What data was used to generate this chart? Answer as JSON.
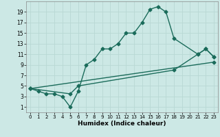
{
  "line1_x": [
    0,
    1,
    2,
    3,
    4,
    5,
    6,
    7,
    8,
    9,
    10,
    11,
    12,
    13,
    14,
    15,
    16,
    17,
    18,
    21,
    22,
    23
  ],
  "line1_y": [
    4.5,
    4,
    3.5,
    3.5,
    3,
    1,
    4,
    9,
    10,
    12,
    12,
    13,
    15,
    15,
    17,
    19.5,
    20,
    19,
    14,
    11,
    12,
    10.5
  ],
  "line2_x": [
    0,
    23
  ],
  "line2_y": [
    4.5,
    9.5
  ],
  "line3_x": [
    0,
    5,
    6,
    18,
    21,
    22,
    23
  ],
  "line3_y": [
    4.5,
    3.5,
    5,
    8,
    11,
    12,
    10.5
  ],
  "color": "#1a6b5a",
  "bg_color": "#cce8e5",
  "grid_color": "#b8d8d4",
  "xlabel": "Humidex (Indice chaleur)",
  "xlim": [
    -0.5,
    23.5
  ],
  "ylim": [
    0,
    21
  ],
  "xticks": [
    0,
    1,
    2,
    3,
    4,
    5,
    6,
    7,
    8,
    9,
    10,
    11,
    12,
    13,
    14,
    15,
    16,
    17,
    18,
    19,
    20,
    21,
    22,
    23
  ],
  "yticks": [
    1,
    3,
    5,
    7,
    9,
    11,
    13,
    15,
    17,
    19
  ],
  "marker": "D",
  "markersize": 2.5,
  "linewidth": 1.0
}
